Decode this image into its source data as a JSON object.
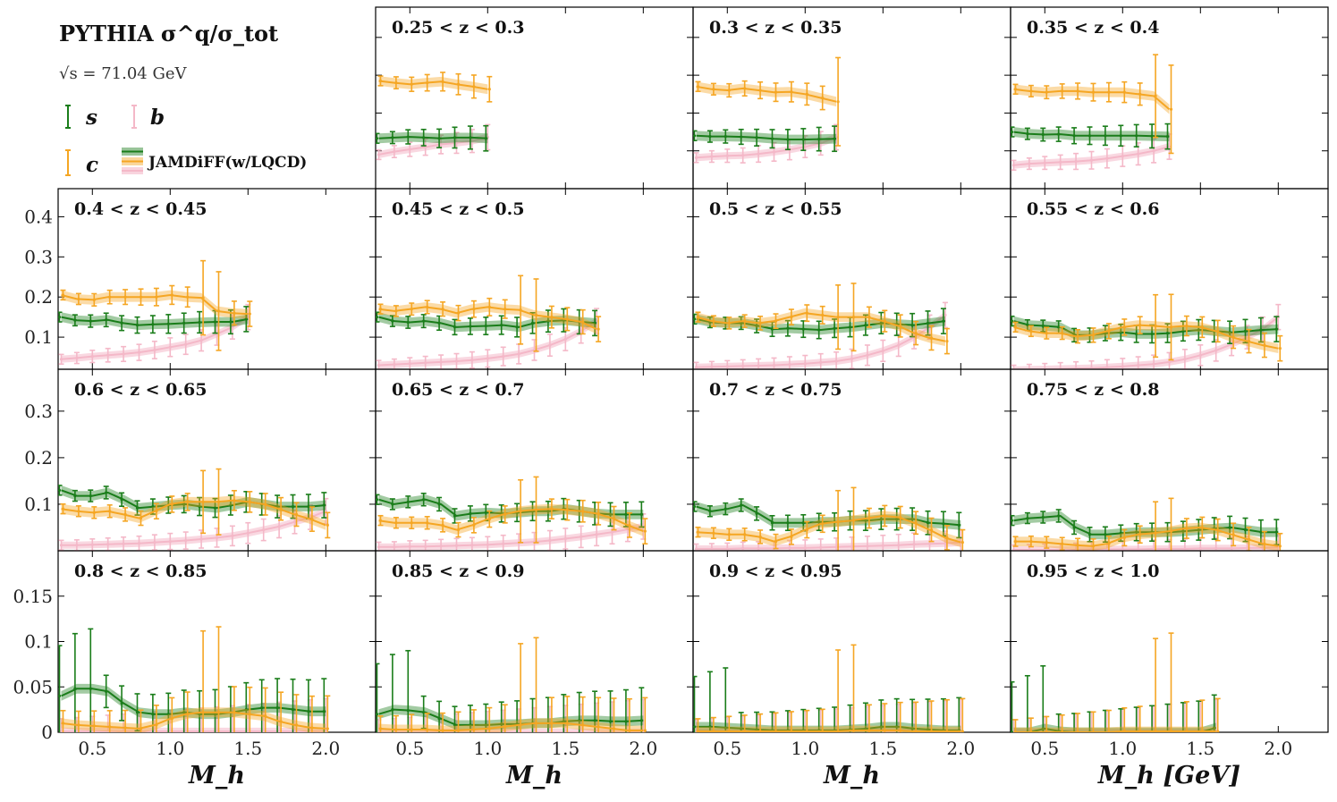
{
  "chart_data": {
    "type": "line",
    "title": "PYTHIA σ^q/σ_tot",
    "subtitle": "√s = 71.04 GeV",
    "xlabel": "M_h",
    "xlabel_last": "M_h [GeV]",
    "xlim": [
      0.28,
      2.32
    ],
    "xticks": [
      "0.5",
      "1.0",
      "1.5",
      "2.0"
    ],
    "rows": [
      {
        "ylim": [
          0,
          0.48
        ],
        "yticks": []
      },
      {
        "ylim": [
          0.02,
          0.47
        ],
        "yticks": [
          "0.1",
          "0.2",
          "0.3",
          "0.4"
        ]
      },
      {
        "ylim": [
          0,
          0.39
        ],
        "yticks": [
          "0.1",
          "0.2",
          "0.3"
        ]
      },
      {
        "ylim": [
          0,
          0.2
        ],
        "yticks": [
          "0",
          "0.05",
          "0.1",
          "0.15"
        ]
      }
    ],
    "colors": {
      "s": "#1a7d1a",
      "c": "#f5a623",
      "b": "#f4b8c8"
    },
    "legend": {
      "s": "s",
      "c": "c",
      "b": "b",
      "model": "JAMDiFF(w/LQCD)"
    },
    "panels": [
      {
        "label": "0.25 < z < 0.3",
        "row": 0,
        "col": 1,
        "xmax": 1.0,
        "s": [
          0.133,
          0.135,
          0.137,
          0.135,
          0.133,
          0.135,
          0.135,
          0.133
        ],
        "c": [
          0.285,
          0.28,
          0.276,
          0.28,
          0.283,
          0.276,
          0.27,
          0.263
        ],
        "b": [
          0.09,
          0.098,
          0.104,
          0.11,
          0.117,
          0.121,
          0.126,
          0.136
        ]
      },
      {
        "label": "0.3 < z < 0.35",
        "row": 0,
        "col": 2,
        "xmax": 1.2,
        "s": [
          0.14,
          0.138,
          0.138,
          0.137,
          0.135,
          0.132,
          0.13,
          0.13,
          0.131,
          0.132
        ],
        "c": [
          0.27,
          0.263,
          0.26,
          0.265,
          0.26,
          0.255,
          0.256,
          0.25,
          0.24,
          0.23
        ],
        "b": [
          0.082,
          0.085,
          0.087,
          0.088,
          0.092,
          0.097,
          0.103,
          0.111,
          0.12,
          0.136
        ]
      },
      {
        "label": "0.35 < z < 0.4",
        "row": 0,
        "col": 3,
        "xmax": 1.3,
        "s": [
          0.15,
          0.145,
          0.143,
          0.144,
          0.14,
          0.14,
          0.14,
          0.14,
          0.14,
          0.139,
          0.138
        ],
        "c": [
          0.263,
          0.258,
          0.255,
          0.258,
          0.258,
          0.255,
          0.255,
          0.255,
          0.25,
          0.245,
          0.21
        ],
        "b": [
          0.062,
          0.066,
          0.068,
          0.07,
          0.072,
          0.075,
          0.08,
          0.086,
          0.092,
          0.1,
          0.111
        ]
      },
      {
        "label": "0.4 < z < 0.45",
        "row": 1,
        "col": 0,
        "xmax": 1.5,
        "s": [
          0.15,
          0.142,
          0.14,
          0.143,
          0.135,
          0.13,
          0.132,
          0.133,
          0.135,
          0.137,
          0.138,
          0.138,
          0.145
        ],
        "c": [
          0.205,
          0.195,
          0.193,
          0.2,
          0.2,
          0.2,
          0.2,
          0.205,
          0.2,
          0.198,
          0.165,
          0.16,
          0.158
        ],
        "b": [
          0.045,
          0.048,
          0.052,
          0.055,
          0.058,
          0.062,
          0.068,
          0.075,
          0.082,
          0.092,
          0.108,
          0.125,
          0.15
        ]
      },
      {
        "label": "0.45 < z < 0.5",
        "row": 1,
        "col": 1,
        "xmax": 1.7,
        "s": [
          0.15,
          0.14,
          0.137,
          0.14,
          0.135,
          0.125,
          0.127,
          0.128,
          0.13,
          0.125,
          0.135,
          0.14,
          0.142,
          0.138,
          0.135
        ],
        "c": [
          0.17,
          0.165,
          0.17,
          0.175,
          0.17,
          0.16,
          0.17,
          0.175,
          0.17,
          0.168,
          0.155,
          0.15,
          0.145,
          0.138,
          0.12
        ],
        "b": [
          0.03,
          0.032,
          0.034,
          0.036,
          0.038,
          0.04,
          0.043,
          0.047,
          0.052,
          0.058,
          0.068,
          0.08,
          0.095,
          0.115,
          0.14
        ]
      },
      {
        "label": "0.5 < z < 0.55",
        "row": 1,
        "col": 2,
        "xmax": 1.9,
        "s": [
          0.145,
          0.137,
          0.135,
          0.135,
          0.128,
          0.12,
          0.122,
          0.12,
          0.118,
          0.122,
          0.125,
          0.13,
          0.135,
          0.132,
          0.13,
          0.135,
          0.14
        ],
        "c": [
          0.15,
          0.14,
          0.135,
          0.14,
          0.135,
          0.14,
          0.15,
          0.16,
          0.155,
          0.15,
          0.15,
          0.15,
          0.14,
          0.128,
          0.11,
          0.098,
          0.09
        ],
        "b": [
          0.025,
          0.026,
          0.027,
          0.028,
          0.029,
          0.03,
          0.032,
          0.034,
          0.037,
          0.04,
          0.046,
          0.055,
          0.066,
          0.08,
          0.1,
          0.125,
          0.155
        ]
      },
      {
        "label": "0.55 < z < 0.6",
        "row": 1,
        "col": 3,
        "xmax": 2.0,
        "s": [
          0.14,
          0.13,
          0.128,
          0.125,
          0.105,
          0.105,
          0.11,
          0.112,
          0.108,
          0.108,
          0.11,
          0.115,
          0.118,
          0.115,
          0.112,
          0.115,
          0.118,
          0.12
        ],
        "c": [
          0.125,
          0.115,
          0.11,
          0.11,
          0.102,
          0.105,
          0.115,
          0.125,
          0.13,
          0.128,
          0.125,
          0.128,
          0.125,
          0.115,
          0.1,
          0.09,
          0.08,
          0.072
        ],
        "b": [
          0.018,
          0.019,
          0.02,
          0.021,
          0.022,
          0.023,
          0.025,
          0.027,
          0.03,
          0.033,
          0.038,
          0.045,
          0.055,
          0.067,
          0.082,
          0.1,
          0.12,
          0.15
        ]
      },
      {
        "label": "0.6 < z < 0.65",
        "row": 2,
        "col": 0,
        "xmax": 2.0,
        "s": [
          0.13,
          0.118,
          0.118,
          0.125,
          0.11,
          0.092,
          0.095,
          0.098,
          0.1,
          0.095,
          0.092,
          0.098,
          0.105,
          0.1,
          0.095,
          0.095,
          0.095,
          0.098
        ],
        "c": [
          0.09,
          0.085,
          0.082,
          0.085,
          0.078,
          0.07,
          0.085,
          0.1,
          0.105,
          0.105,
          0.105,
          0.108,
          0.105,
          0.1,
          0.09,
          0.078,
          0.068,
          0.055
        ],
        "b": [
          0.012,
          0.012,
          0.013,
          0.014,
          0.015,
          0.016,
          0.018,
          0.02,
          0.022,
          0.025,
          0.028,
          0.032,
          0.038,
          0.045,
          0.052,
          0.062,
          0.072,
          0.085
        ]
      },
      {
        "label": "0.65 < z < 0.7",
        "row": 2,
        "col": 1,
        "xmax": 2.0,
        "s": [
          0.11,
          0.1,
          0.105,
          0.11,
          0.1,
          0.075,
          0.08,
          0.082,
          0.08,
          0.082,
          0.085,
          0.085,
          0.09,
          0.085,
          0.08,
          0.078,
          0.078,
          0.078
        ],
        "c": [
          0.065,
          0.06,
          0.06,
          0.06,
          0.055,
          0.045,
          0.055,
          0.068,
          0.078,
          0.085,
          0.088,
          0.09,
          0.088,
          0.085,
          0.08,
          0.07,
          0.055,
          0.042
        ],
        "b": [
          0.008,
          0.008,
          0.009,
          0.009,
          0.01,
          0.011,
          0.012,
          0.013,
          0.015,
          0.017,
          0.019,
          0.022,
          0.026,
          0.03,
          0.035,
          0.04,
          0.046,
          0.052
        ]
      },
      {
        "label": "0.7 < z < 0.75",
        "row": 2,
        "col": 2,
        "xmax": 2.0,
        "s": [
          0.095,
          0.085,
          0.09,
          0.098,
          0.08,
          0.06,
          0.06,
          0.06,
          0.062,
          0.062,
          0.065,
          0.065,
          0.068,
          0.068,
          0.068,
          0.06,
          0.058,
          0.055
        ],
        "c": [
          0.04,
          0.038,
          0.035,
          0.035,
          0.03,
          0.02,
          0.03,
          0.045,
          0.058,
          0.062,
          0.065,
          0.07,
          0.075,
          0.072,
          0.06,
          0.045,
          0.028,
          0.018
        ],
        "b": [
          0.004,
          0.004,
          0.004,
          0.005,
          0.005,
          0.005,
          0.006,
          0.006,
          0.007,
          0.008,
          0.009,
          0.01,
          0.011,
          0.012,
          0.014,
          0.015,
          0.016,
          0.018
        ]
      },
      {
        "label": "0.75 < z < 0.8",
        "row": 2,
        "col": 3,
        "xmax": 2.0,
        "s": [
          0.065,
          0.07,
          0.072,
          0.075,
          0.05,
          0.035,
          0.035,
          0.038,
          0.04,
          0.04,
          0.04,
          0.042,
          0.045,
          0.048,
          0.05,
          0.045,
          0.04,
          0.04
        ],
        "c": [
          0.02,
          0.02,
          0.018,
          0.015,
          0.012,
          0.01,
          0.015,
          0.028,
          0.035,
          0.038,
          0.042,
          0.048,
          0.05,
          0.045,
          0.035,
          0.025,
          0.015,
          0.01
        ],
        "b": [
          0.002,
          0.002,
          0.002,
          0.002,
          0.002,
          0.003,
          0.003,
          0.003,
          0.003,
          0.004,
          0.004,
          0.004,
          0.005,
          0.005,
          0.005,
          0.006,
          0.006,
          0.007
        ]
      },
      {
        "label": "0.8 < z < 0.85",
        "row": 3,
        "col": 0,
        "xmax": 2.0,
        "s": [
          0.04,
          0.048,
          0.048,
          0.045,
          0.032,
          0.022,
          0.02,
          0.02,
          0.022,
          0.02,
          0.02,
          0.022,
          0.025,
          0.027,
          0.027,
          0.025,
          0.023,
          0.023
        ],
        "c": [
          0.01,
          0.008,
          0.007,
          0.006,
          0.005,
          0.004,
          0.008,
          0.015,
          0.02,
          0.022,
          0.022,
          0.022,
          0.02,
          0.018,
          0.012,
          0.008,
          0.005,
          0.004
        ],
        "b": [
          0.001,
          0.001,
          0.001,
          0.001,
          0.001,
          0.001,
          0.001,
          0.001,
          0.001,
          0.001,
          0.001,
          0.001,
          0.001,
          0.001,
          0.001,
          0.001,
          0.001,
          0.001
        ]
      },
      {
        "label": "0.85 < z < 0.9",
        "row": 3,
        "col": 1,
        "xmax": 2.0,
        "s": [
          0.02,
          0.025,
          0.024,
          0.022,
          0.015,
          0.008,
          0.008,
          0.008,
          0.009,
          0.009,
          0.01,
          0.01,
          0.012,
          0.013,
          0.013,
          0.012,
          0.012,
          0.013
        ],
        "c": [
          0.004,
          0.003,
          0.003,
          0.003,
          0.002,
          0.002,
          0.003,
          0.004,
          0.006,
          0.008,
          0.01,
          0.01,
          0.01,
          0.008,
          0.006,
          0.004,
          0.002,
          0.002
        ],
        "b": [
          0.0,
          0.0,
          0.0,
          0.0,
          0.0,
          0.0,
          0.0,
          0.0,
          0.0,
          0.0,
          0.0,
          0.0,
          0.0,
          0.0,
          0.0,
          0.0,
          0.0,
          0.0
        ]
      },
      {
        "label": "0.9 < z < 0.95",
        "row": 3,
        "col": 2,
        "xmax": 2.0,
        "s": [
          0.006,
          0.006,
          0.005,
          0.004,
          0.003,
          0.002,
          0.002,
          0.002,
          0.002,
          0.002,
          0.003,
          0.004,
          0.006,
          0.006,
          0.004,
          0.003,
          0.002,
          0.002
        ],
        "c": [
          0.001,
          0.001,
          0.001,
          0.001,
          0.001,
          0.001,
          0.001,
          0.001,
          0.001,
          0.001,
          0.002,
          0.002,
          0.002,
          0.002,
          0.001,
          0.001,
          0.001,
          0.001
        ],
        "b": [
          0.0,
          0.0,
          0.0,
          0.0,
          0.0,
          0.0,
          0.0,
          0.0,
          0.0,
          0.0,
          0.0,
          0.0,
          0.0,
          0.0,
          0.0,
          0.0,
          0.0,
          0.0
        ]
      },
      {
        "label": "0.95 < z < 1.0",
        "row": 3,
        "col": 3,
        "xmax": 1.6,
        "s": [
          0.0,
          0.0,
          0.004,
          0.001,
          0.0,
          0.0,
          0.0,
          0.0,
          0.0,
          0.0,
          0.0,
          0.0,
          0.0,
          0.005
        ],
        "c": [
          0.0,
          0.0,
          0.0,
          0.0,
          0.0,
          0.0,
          0.0,
          0.001,
          0.001,
          0.001,
          0.001,
          0.001,
          0.001,
          0.001
        ],
        "b": [
          0.0,
          0.0,
          0.0,
          0.0,
          0.0,
          0.0,
          0.0,
          0.0,
          0.0,
          0.0,
          0.0,
          0.0,
          0.0,
          0.0
        ]
      }
    ]
  }
}
